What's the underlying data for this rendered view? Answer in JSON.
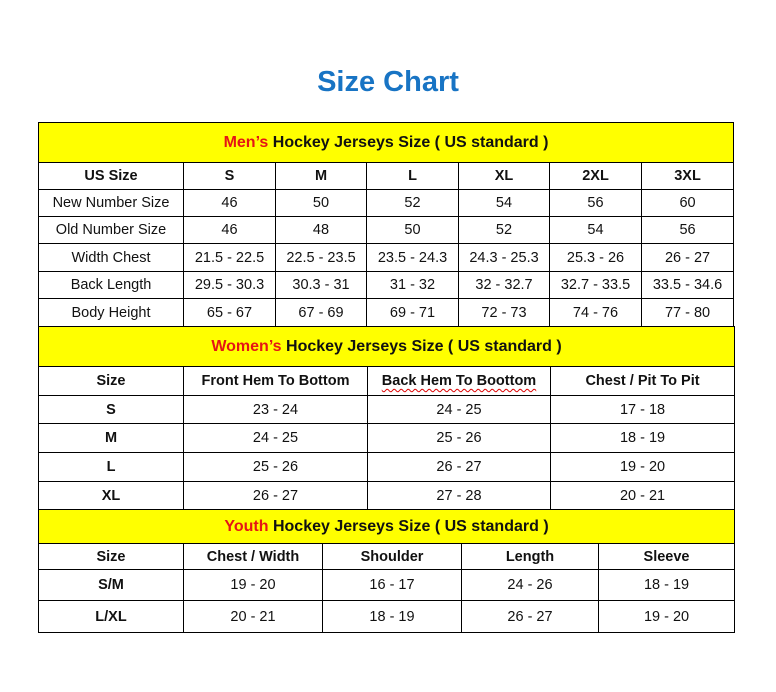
{
  "title": "Size Chart",
  "colors": {
    "title": "#1874c4",
    "section_bg": "#ffff00",
    "accent": "#e51515"
  },
  "men": {
    "heading_accent": "Men’s",
    "heading_rest": " Hockey Jerseys Size ( US standard )",
    "headers": [
      "US Size",
      "S",
      "M",
      "L",
      "XL",
      "2XL",
      "3XL"
    ],
    "rows": [
      [
        "New Number Size",
        "46",
        "50",
        "52",
        "54",
        "56",
        "60"
      ],
      [
        "Old Number Size",
        "46",
        "48",
        "50",
        "52",
        "54",
        "56"
      ],
      [
        "Width Chest",
        "21.5 - 22.5",
        "22.5 - 23.5",
        "23.5 - 24.3",
        "24.3 - 25.3",
        "25.3 - 26",
        "26 - 27"
      ],
      [
        "Back Length",
        "29.5 - 30.3",
        "30.3 - 31",
        "31 - 32",
        "32 - 32.7",
        "32.7 - 33.5",
        "33.5 - 34.6"
      ],
      [
        "Body Height",
        "65 - 67",
        "67 - 69",
        "69 - 71",
        "72 - 73",
        "74 - 76",
        "77 - 80"
      ]
    ]
  },
  "women": {
    "heading_accent": "Women’s",
    "heading_rest": " Hockey Jerseys Size ( US standard )",
    "headers": [
      "Size",
      "Front Hem To Bottom",
      "Back Hem To Boottom",
      "Chest / Pit To Pit"
    ],
    "rows": [
      [
        "S",
        "23 - 24",
        "24 - 25",
        "17 - 18"
      ],
      [
        "M",
        "24 - 25",
        "25 - 26",
        "18 - 19"
      ],
      [
        "L",
        "25 - 26",
        "26 - 27",
        "19 - 20"
      ],
      [
        "XL",
        "26 - 27",
        "27 - 28",
        "20 - 21"
      ]
    ]
  },
  "youth": {
    "heading_accent": "Youth",
    "heading_rest": " Hockey Jerseys Size ( US standard )",
    "headers": [
      "Size",
      "Chest / Width",
      "Shoulder",
      "Length",
      "Sleeve"
    ],
    "rows": [
      [
        "S/M",
        "19 - 20",
        "16 - 17",
        "24 - 26",
        "18 - 19"
      ],
      [
        "L/XL",
        "20 - 21",
        "18 - 19",
        "26 - 27",
        "19 - 20"
      ]
    ]
  }
}
